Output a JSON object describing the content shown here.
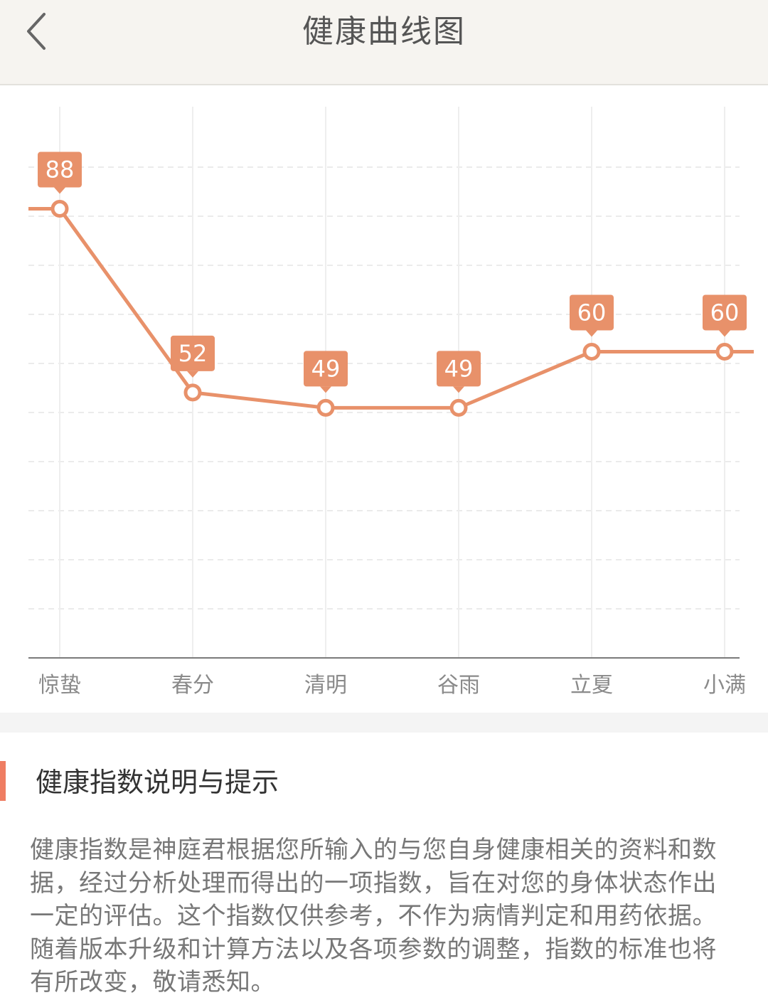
{
  "header": {
    "title": "健康曲线图",
    "back_icon": "chevron-left-icon"
  },
  "colors": {
    "accent": "#e8916a",
    "label_bg": "#e8916a",
    "grid": "#ebebeb",
    "axis": "#7a7a7a"
  },
  "chart_data": {
    "type": "line",
    "categories": [
      "惊蛰",
      "春分",
      "清明",
      "谷雨",
      "立夏",
      "小满"
    ],
    "values": [
      88,
      52,
      49,
      49,
      60,
      60
    ],
    "data_labels": [
      "88",
      "52",
      "49",
      "49",
      "60",
      "60"
    ],
    "ylim": [
      0,
      108
    ],
    "grid": true,
    "title": "",
    "xlabel": "",
    "ylabel": ""
  },
  "section": {
    "title": "健康指数说明与提示",
    "body": "健康指数是神庭君根据您所输入的与您自身健康相关的资料和数据，经过分析处理而得出的一项指数，旨在对您的身体状态作出一定的评估。这个指数仅供参考，不作为病情判定和用药依据。随着版本升级和计算方法以及各项参数的调整，指数的标准也将有所改变，敬请悉知。"
  }
}
